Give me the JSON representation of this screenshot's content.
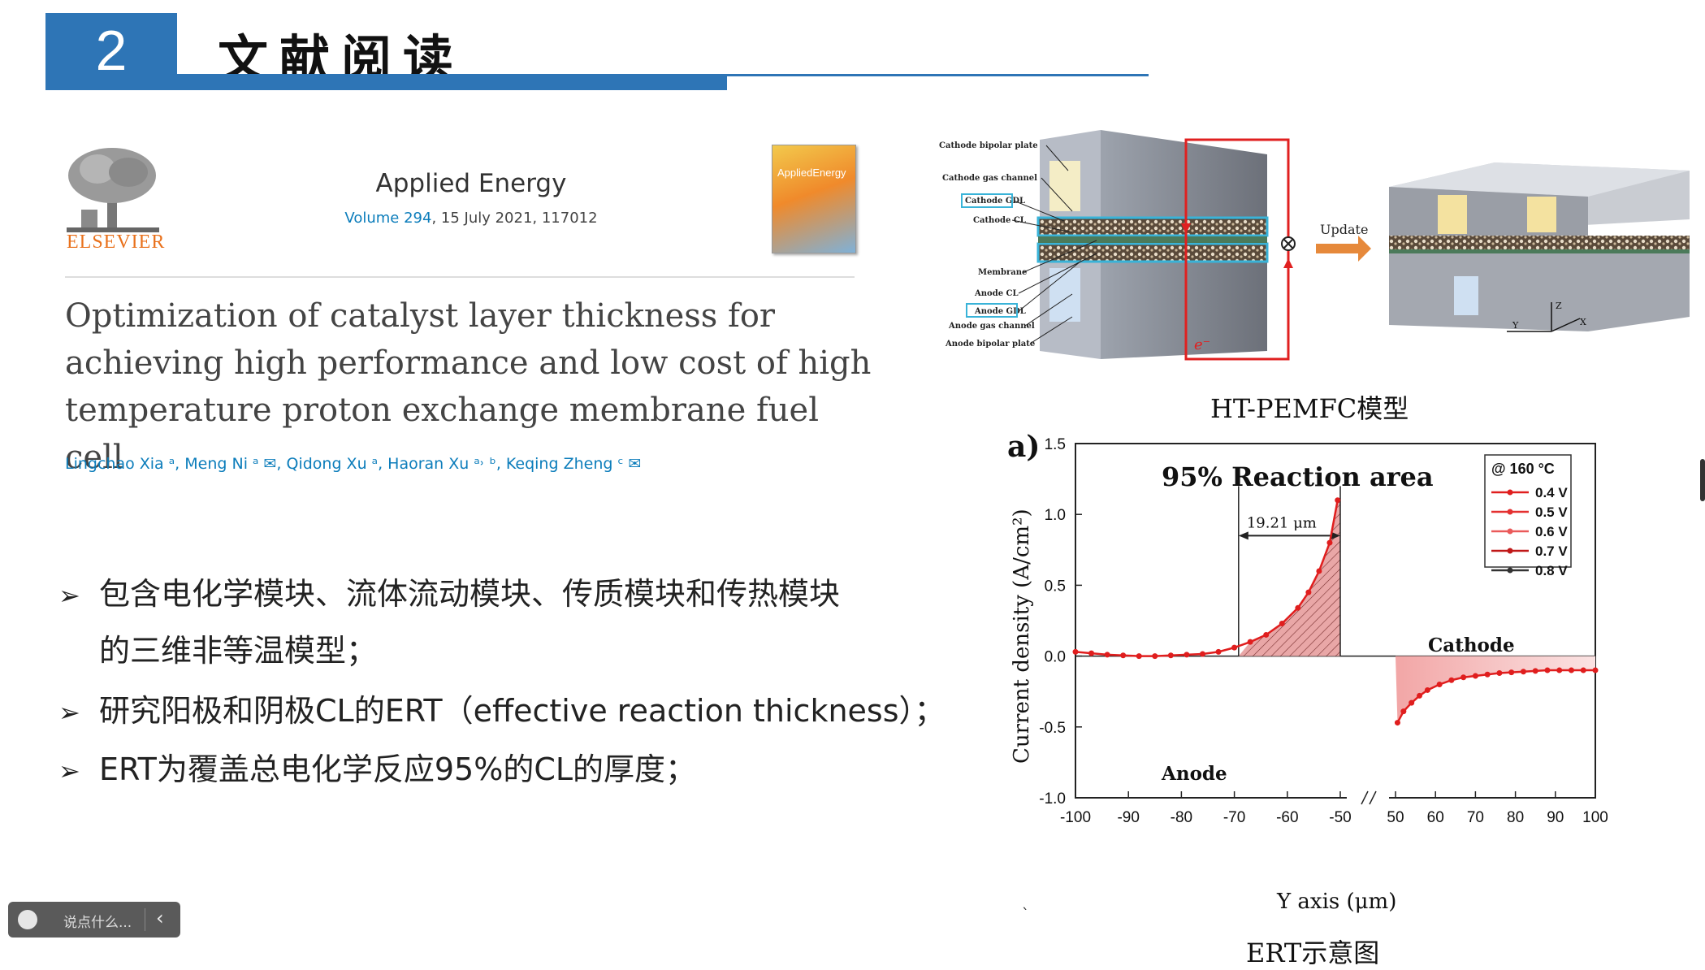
{
  "header": {
    "number": "2",
    "title": "文献阅读"
  },
  "paper": {
    "publisher": "ELSEVIER",
    "journal": "Applied Energy",
    "volume_link": "Volume 294",
    "volume_rest": ", 15 July 2021, 117012",
    "cover_label": "AppliedEnergy",
    "title_lines": [
      "Optimization of catalyst layer thickness for",
      "achieving high performance and low cost of high",
      "temperature proton exchange membrane fuel cell"
    ],
    "authors": "Lingchao Xia ᵃ, Meng Ni ᵃ ✉, Qidong Xu ᵃ, Haoran Xu ᵃ˒ ᵇ, Keqing Zheng ᶜ ✉"
  },
  "bullets": [
    {
      "marker": "➢",
      "line1": "包含电化学模块、流体流动模块、传质模块和传热模块",
      "line2": "的三维非等温模型；"
    },
    {
      "marker": "➢",
      "line1": "研究阳极和阴极CL的ERT（effective reaction thickness）；"
    },
    {
      "marker": "➢",
      "line1": "ERT为覆盖总电化学反应95%的CL的厚度；"
    }
  ],
  "model_figure": {
    "caption": "HT-PEMFC模型",
    "labels": [
      "Cathode bipolar plate",
      "Cathode gas channel",
      "Cathode GDL",
      "Cathode CL",
      "Membrane",
      "Anode CL",
      "Anode GDL",
      "Anode gas channel",
      "Anode bipolar plate"
    ],
    "electron": "e⁻",
    "update": "Update",
    "axes": [
      "Z",
      "Y",
      "X"
    ]
  },
  "ert_caption": "ERT示意图",
  "chart_data": {
    "type": "line",
    "panel_label": "a)",
    "inner_title": "95% Reaction area",
    "xlabel": "Y axis (μm)",
    "ylabel": "Current density (A/cm²)",
    "ylim": [
      -1.0,
      1.5
    ],
    "y_ticks": [
      "1.5",
      "1.0",
      "0.5",
      "0.0",
      "-0.5",
      "-1.0"
    ],
    "x_ticks": [
      "-100",
      "-90",
      "-80",
      "-70",
      "-60",
      "-50",
      "50",
      "60",
      "70",
      "80",
      "90",
      "100"
    ],
    "legend_title": "@ 160 °C",
    "legend": [
      "0.4 V",
      "0.5 V",
      "0.6 V",
      "0.7 V",
      "0.8 V"
    ],
    "annotation": "19.21 μm",
    "region_labels": {
      "cathode": "Cathode",
      "anode": "Anode"
    },
    "series": [
      {
        "name": "0.4 V",
        "segment": "anode",
        "x": [
          -100,
          -97,
          -94,
          -91,
          -88,
          -85,
          -82,
          -79,
          -76,
          -73,
          -70,
          -67,
          -64,
          -61,
          -58,
          -56,
          -54,
          -52,
          -50.5
        ],
        "values": [
          0.03,
          0.02,
          0.01,
          0.005,
          0.0,
          0.0,
          0.005,
          0.01,
          0.015,
          0.03,
          0.06,
          0.1,
          0.15,
          0.23,
          0.34,
          0.45,
          0.6,
          0.8,
          1.1
        ]
      },
      {
        "name": "0.4 V",
        "segment": "cathode",
        "x": [
          50.5,
          52,
          54,
          56,
          58,
          61,
          64,
          67,
          70,
          73,
          76,
          79,
          82,
          85,
          88,
          91,
          94,
          97,
          100
        ],
        "values": [
          -0.47,
          -0.39,
          -0.33,
          -0.28,
          -0.24,
          -0.2,
          -0.17,
          -0.15,
          -0.14,
          -0.13,
          -0.12,
          -0.115,
          -0.11,
          -0.105,
          -0.1,
          -0.1,
          -0.1,
          -0.1,
          -0.1
        ]
      }
    ],
    "shaded_regions": [
      {
        "from": -69.2,
        "to": -50,
        "side": "anode"
      },
      {
        "from": 50,
        "to": 100,
        "side": "cathode"
      }
    ]
  },
  "comment_box": {
    "placeholder": "说点什么..."
  }
}
